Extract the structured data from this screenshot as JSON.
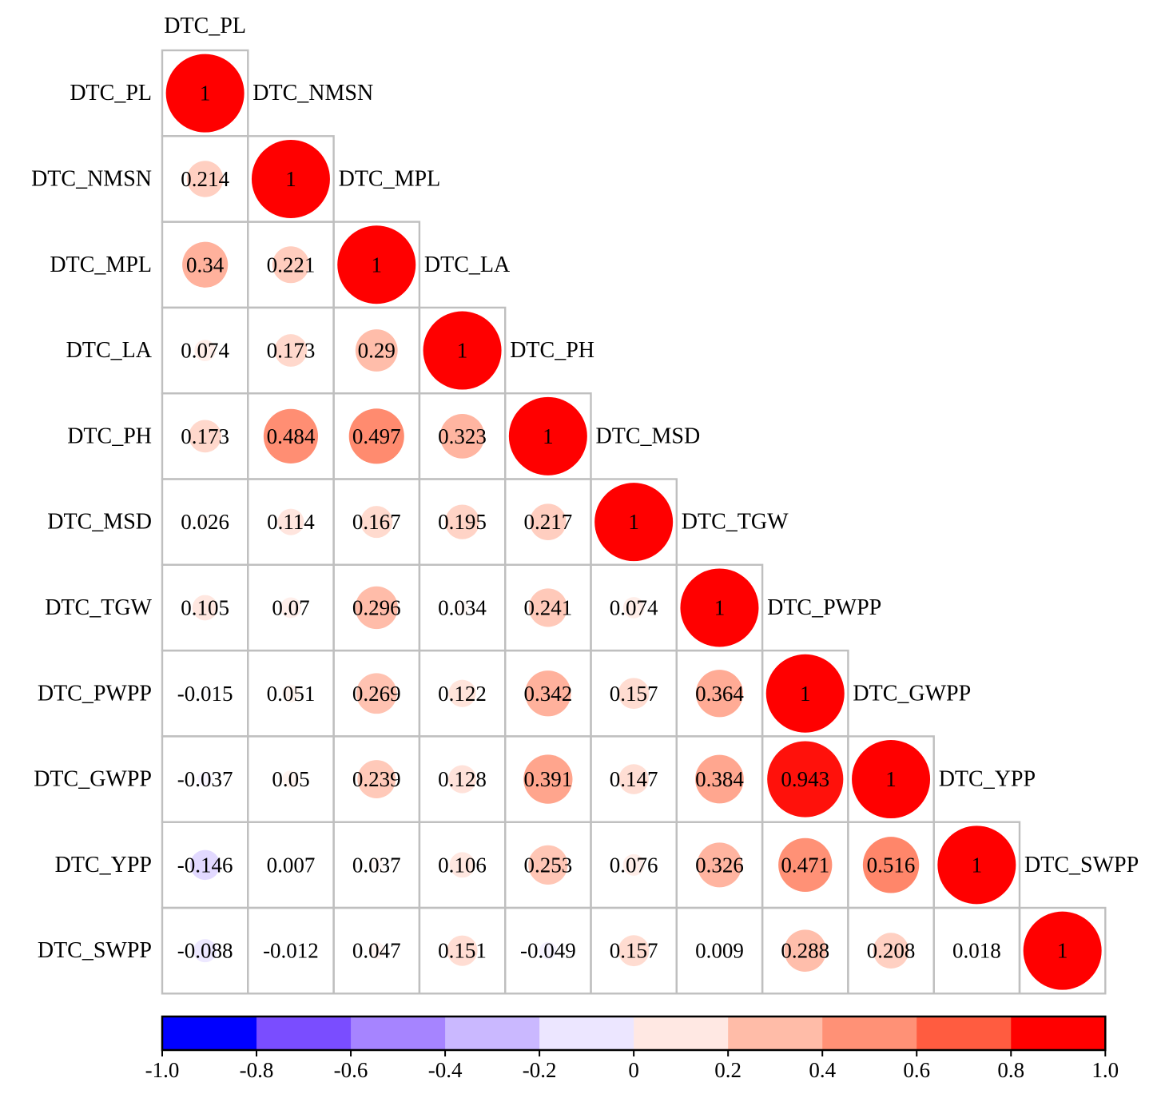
{
  "chart_data": {
    "type": "heatmap",
    "title": "",
    "variables": [
      "DTC_PL",
      "DTC_NMSN",
      "DTC_MPL",
      "DTC_LA",
      "DTC_PH",
      "DTC_MSD",
      "DTC_TGW",
      "DTC_PWPP",
      "DTC_GWPP",
      "DTC_YPP",
      "DTC_SWPP"
    ],
    "matrix": [
      [
        1
      ],
      [
        0.214,
        1
      ],
      [
        0.34,
        0.221,
        1
      ],
      [
        0.074,
        0.173,
        0.29,
        1
      ],
      [
        0.173,
        0.484,
        0.497,
        0.323,
        1
      ],
      [
        0.026,
        0.114,
        0.167,
        0.195,
        0.217,
        1
      ],
      [
        0.105,
        0.07,
        0.296,
        0.034,
        0.241,
        0.074,
        1
      ],
      [
        -0.015,
        0.051,
        0.269,
        0.122,
        0.342,
        0.157,
        0.364,
        1
      ],
      [
        -0.037,
        0.05,
        0.239,
        0.128,
        0.391,
        0.147,
        0.384,
        0.943,
        1
      ],
      [
        -0.146,
        0.007,
        0.037,
        0.106,
        0.253,
        0.076,
        0.326,
        0.471,
        0.516,
        1
      ],
      [
        -0.088,
        -0.012,
        0.047,
        0.151,
        -0.049,
        0.157,
        0.009,
        0.288,
        0.208,
        0.018,
        1
      ]
    ],
    "layout": "lower-triangle",
    "marker": "circle",
    "colorbar": {
      "range": [
        -1.0,
        1.0
      ],
      "tick_labels": [
        "-1.0",
        "-0.8",
        "-0.6",
        "-0.4",
        "-0.2",
        "0",
        "0.2",
        "0.4",
        "0.6",
        "0.8",
        "1.0"
      ],
      "bin_colors": [
        "#0000ff",
        "#7a4dff",
        "#a684ff",
        "#cab8ff",
        "#ece6ff",
        "#ffe8e3",
        "#ffbca8",
        "#ff9176",
        "#ff5c40",
        "#ff0000"
      ]
    }
  }
}
